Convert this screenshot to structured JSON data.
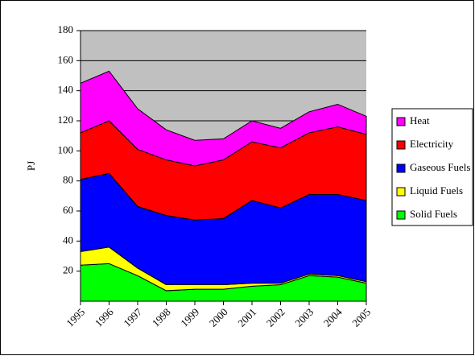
{
  "chart_data": {
    "type": "area",
    "stacked": true,
    "y_label": "PJ",
    "categories": [
      "1995",
      "1996",
      "1997",
      "1998",
      "1999",
      "2000",
      "2001",
      "2002",
      "2003",
      "2004",
      "2005"
    ],
    "series": [
      {
        "name": "Solid Fuels",
        "color": "#00ff00",
        "values": [
          24,
          25,
          17,
          7,
          8,
          8,
          10,
          11,
          17,
          16,
          12
        ]
      },
      {
        "name": "Liquid Fuels",
        "color": "#ffff00",
        "values": [
          9,
          11,
          5,
          4,
          3,
          3,
          2,
          1,
          1,
          1,
          1
        ]
      },
      {
        "name": "Gaseous Fuels",
        "color": "#0000ff",
        "values": [
          48,
          49,
          41,
          46,
          43,
          44,
          55,
          50,
          53,
          54,
          54
        ]
      },
      {
        "name": "Electricity",
        "color": "#ff0000",
        "values": [
          31,
          35,
          38,
          37,
          36,
          39,
          39,
          40,
          41,
          45,
          44
        ]
      },
      {
        "name": "Heat",
        "color": "#ff00ff",
        "values": [
          33,
          33,
          27,
          20,
          17,
          14,
          14,
          13,
          14,
          15,
          12
        ]
      }
    ],
    "ylim": [
      0,
      180
    ],
    "yticks": [
      20,
      40,
      60,
      80,
      100,
      120,
      140,
      160,
      180
    ],
    "grid": true,
    "plot_background": "#c0c0c0",
    "legend": "right"
  }
}
